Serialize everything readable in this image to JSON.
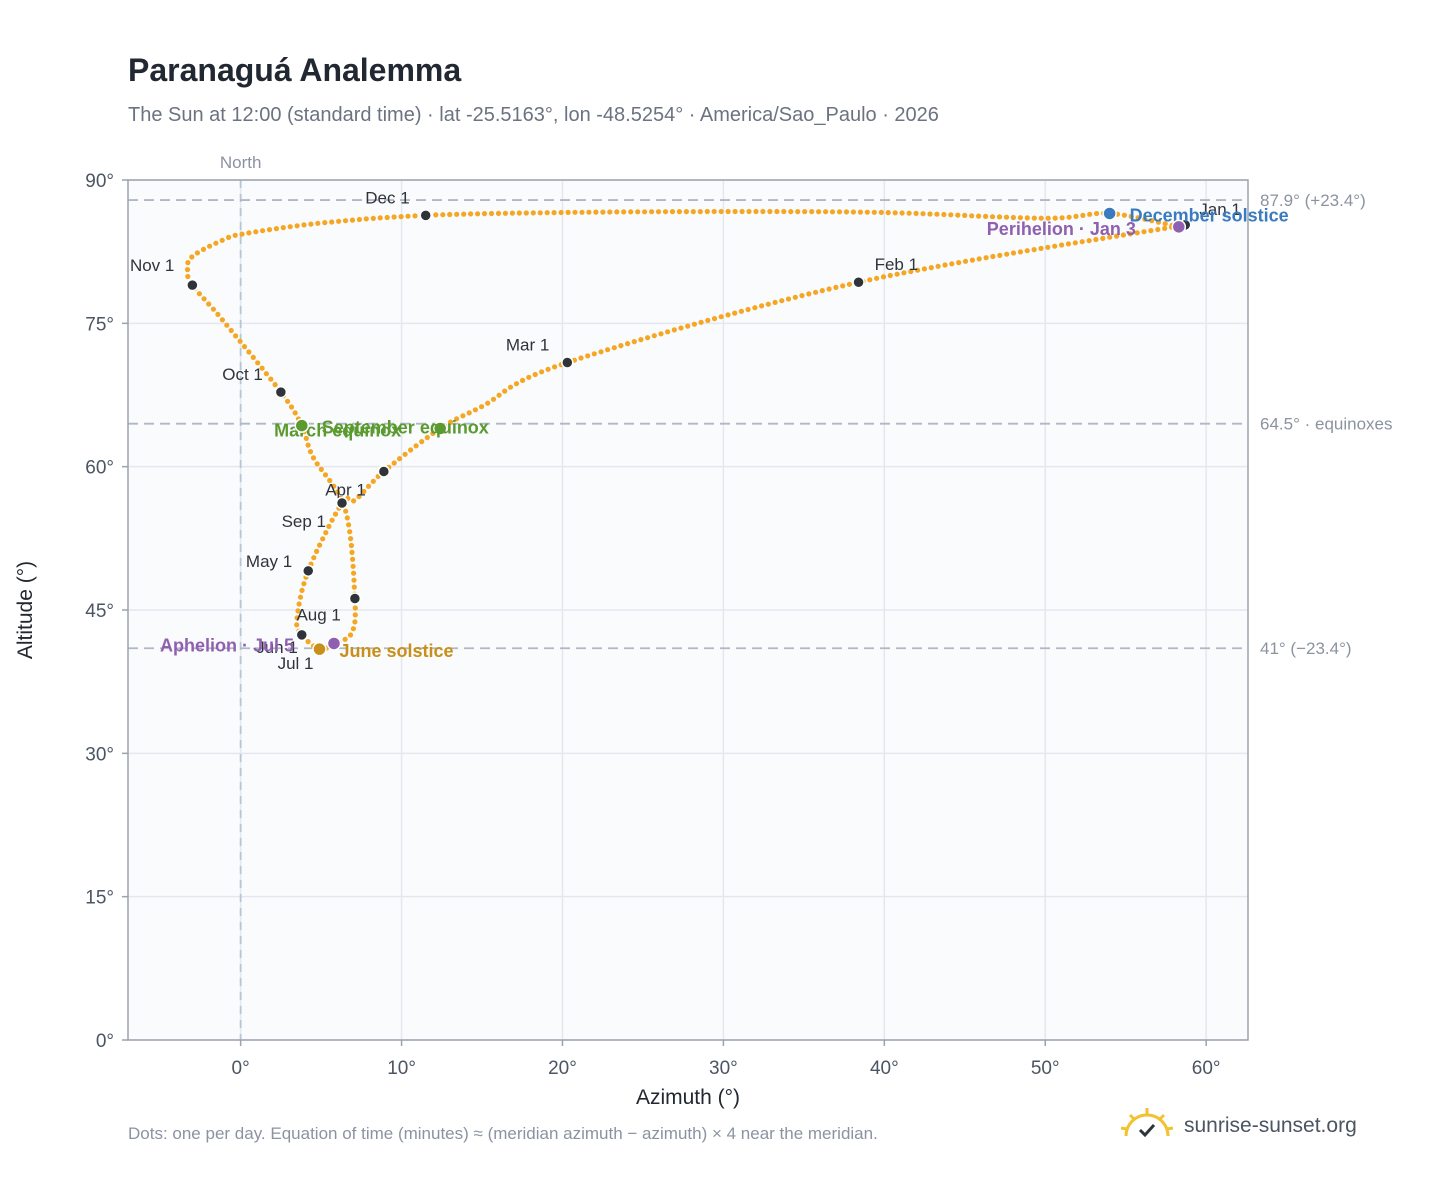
{
  "title": "Paranaguá Analemma",
  "subtitle": "The Sun at 12:00 (standard time) · lat -25.5163°, lon -48.5254° · America/Sao_Paulo · 2026",
  "footnote": "Dots: one per day. Equation of time (minutes) ≈ (meridian azimuth − azimuth) × 4 near the meridian.",
  "brand": "sunrise-sunset.org",
  "colors": {
    "path": "#f5a623",
    "month_marker": "#2f343b",
    "equinox": "#5a9a2f",
    "june_solstice": "#c8901a",
    "december_solstice": "#3a7bbf",
    "apsis": "#8f5fb0",
    "frame": "#9aa3ae",
    "grid": "#e4e8ee",
    "plot_bg": "#f9fbfd"
  },
  "chart_data": {
    "type": "scatter",
    "xlabel": "Azimuth (°)",
    "ylabel": "Altitude (°)",
    "xlim": [
      -7,
      62.6
    ],
    "ylim": [
      0,
      90
    ],
    "x_ticks": [
      0,
      10,
      20,
      30,
      40,
      50,
      60
    ],
    "x_tick_labels": [
      "0°",
      "10°",
      "20°",
      "30°",
      "40°",
      "50°",
      "60°"
    ],
    "y_ticks": [
      0,
      15,
      30,
      45,
      60,
      75,
      90
    ],
    "y_tick_labels": [
      "0°",
      "15°",
      "30°",
      "45°",
      "60°",
      "75°",
      "90°"
    ],
    "grid": true,
    "meridian": {
      "x": 0,
      "label": "North"
    },
    "reference_lines": [
      {
        "y": 87.9,
        "label": "87.9° (+23.4°)"
      },
      {
        "y": 64.5,
        "label": "64.5° · equinoxes"
      },
      {
        "y": 41,
        "label": "41° (−23.4°)"
      }
    ],
    "analemma_path_knots": [
      [
        58.7,
        85.3
      ],
      [
        38.4,
        79.3
      ],
      [
        20.3,
        70.9
      ],
      [
        15,
        66.3
      ],
      [
        12.4,
        64.0
      ],
      [
        8.9,
        59.5
      ],
      [
        7.1,
        56.5
      ],
      [
        6.3,
        56.2
      ],
      [
        4.2,
        49.1
      ],
      [
        3.5,
        44.0
      ],
      [
        3.8,
        42.4
      ],
      [
        4.9,
        40.9
      ],
      [
        5.8,
        41.5
      ],
      [
        6.9,
        42.6
      ],
      [
        7.1,
        46.2
      ],
      [
        6.5,
        55.5
      ],
      [
        4.5,
        61.0
      ],
      [
        3.8,
        64.3
      ],
      [
        2.5,
        67.8
      ],
      [
        -1.2,
        75.5
      ],
      [
        -3.0,
        79.0
      ],
      [
        -3.3,
        80.5
      ],
      [
        -3.0,
        82.0
      ],
      [
        -1.0,
        83.8
      ],
      [
        0.3,
        84.4
      ],
      [
        5.0,
        85.5
      ],
      [
        11.5,
        86.3
      ],
      [
        20.0,
        86.6
      ],
      [
        30.0,
        86.7
      ],
      [
        40.0,
        86.6
      ],
      [
        50.0,
        86.0
      ],
      [
        54.0,
        86.5
      ],
      [
        58.3,
        85.1
      ]
    ],
    "month_markers": [
      {
        "label": "Jan 1",
        "x": 58.7,
        "y": 85.3
      },
      {
        "label": "Feb 1",
        "x": 38.4,
        "y": 79.3
      },
      {
        "label": "Mar 1",
        "x": 20.3,
        "y": 70.9
      },
      {
        "label": "Apr 1",
        "x": 8.9,
        "y": 59.5
      },
      {
        "label": "May 1",
        "x": 4.2,
        "y": 49.1
      },
      {
        "label": "Jun 1",
        "x": 3.8,
        "y": 42.4
      },
      {
        "label": "Jul 1",
        "x": 4.9,
        "y": 40.9
      },
      {
        "label": "Aug 1",
        "x": 7.1,
        "y": 46.2
      },
      {
        "label": "Sep 1",
        "x": 6.3,
        "y": 56.2
      },
      {
        "label": "Oct 1",
        "x": 2.5,
        "y": 67.8
      },
      {
        "label": "Nov 1",
        "x": -3.0,
        "y": 79.0
      },
      {
        "label": "Dec 1",
        "x": 11.5,
        "y": 86.3
      }
    ],
    "events": [
      {
        "label": "March equinox",
        "x": 12.4,
        "y": 64.0,
        "color": "#5a9a2f"
      },
      {
        "label": "September equinox",
        "x": 3.8,
        "y": 64.3,
        "color": "#5a9a2f"
      },
      {
        "label": "June solstice",
        "x": 4.9,
        "y": 40.9,
        "color": "#c8901a"
      },
      {
        "label": "December solstice",
        "x": 54.0,
        "y": 86.5,
        "color": "#3a7bbf"
      },
      {
        "label": "Aphelion · Jul 5",
        "x": 5.8,
        "y": 41.5,
        "color": "#8f5fb0"
      },
      {
        "label": "Perihelion · Jan 3",
        "x": 58.3,
        "y": 85.1,
        "color": "#8f5fb0"
      }
    ]
  }
}
